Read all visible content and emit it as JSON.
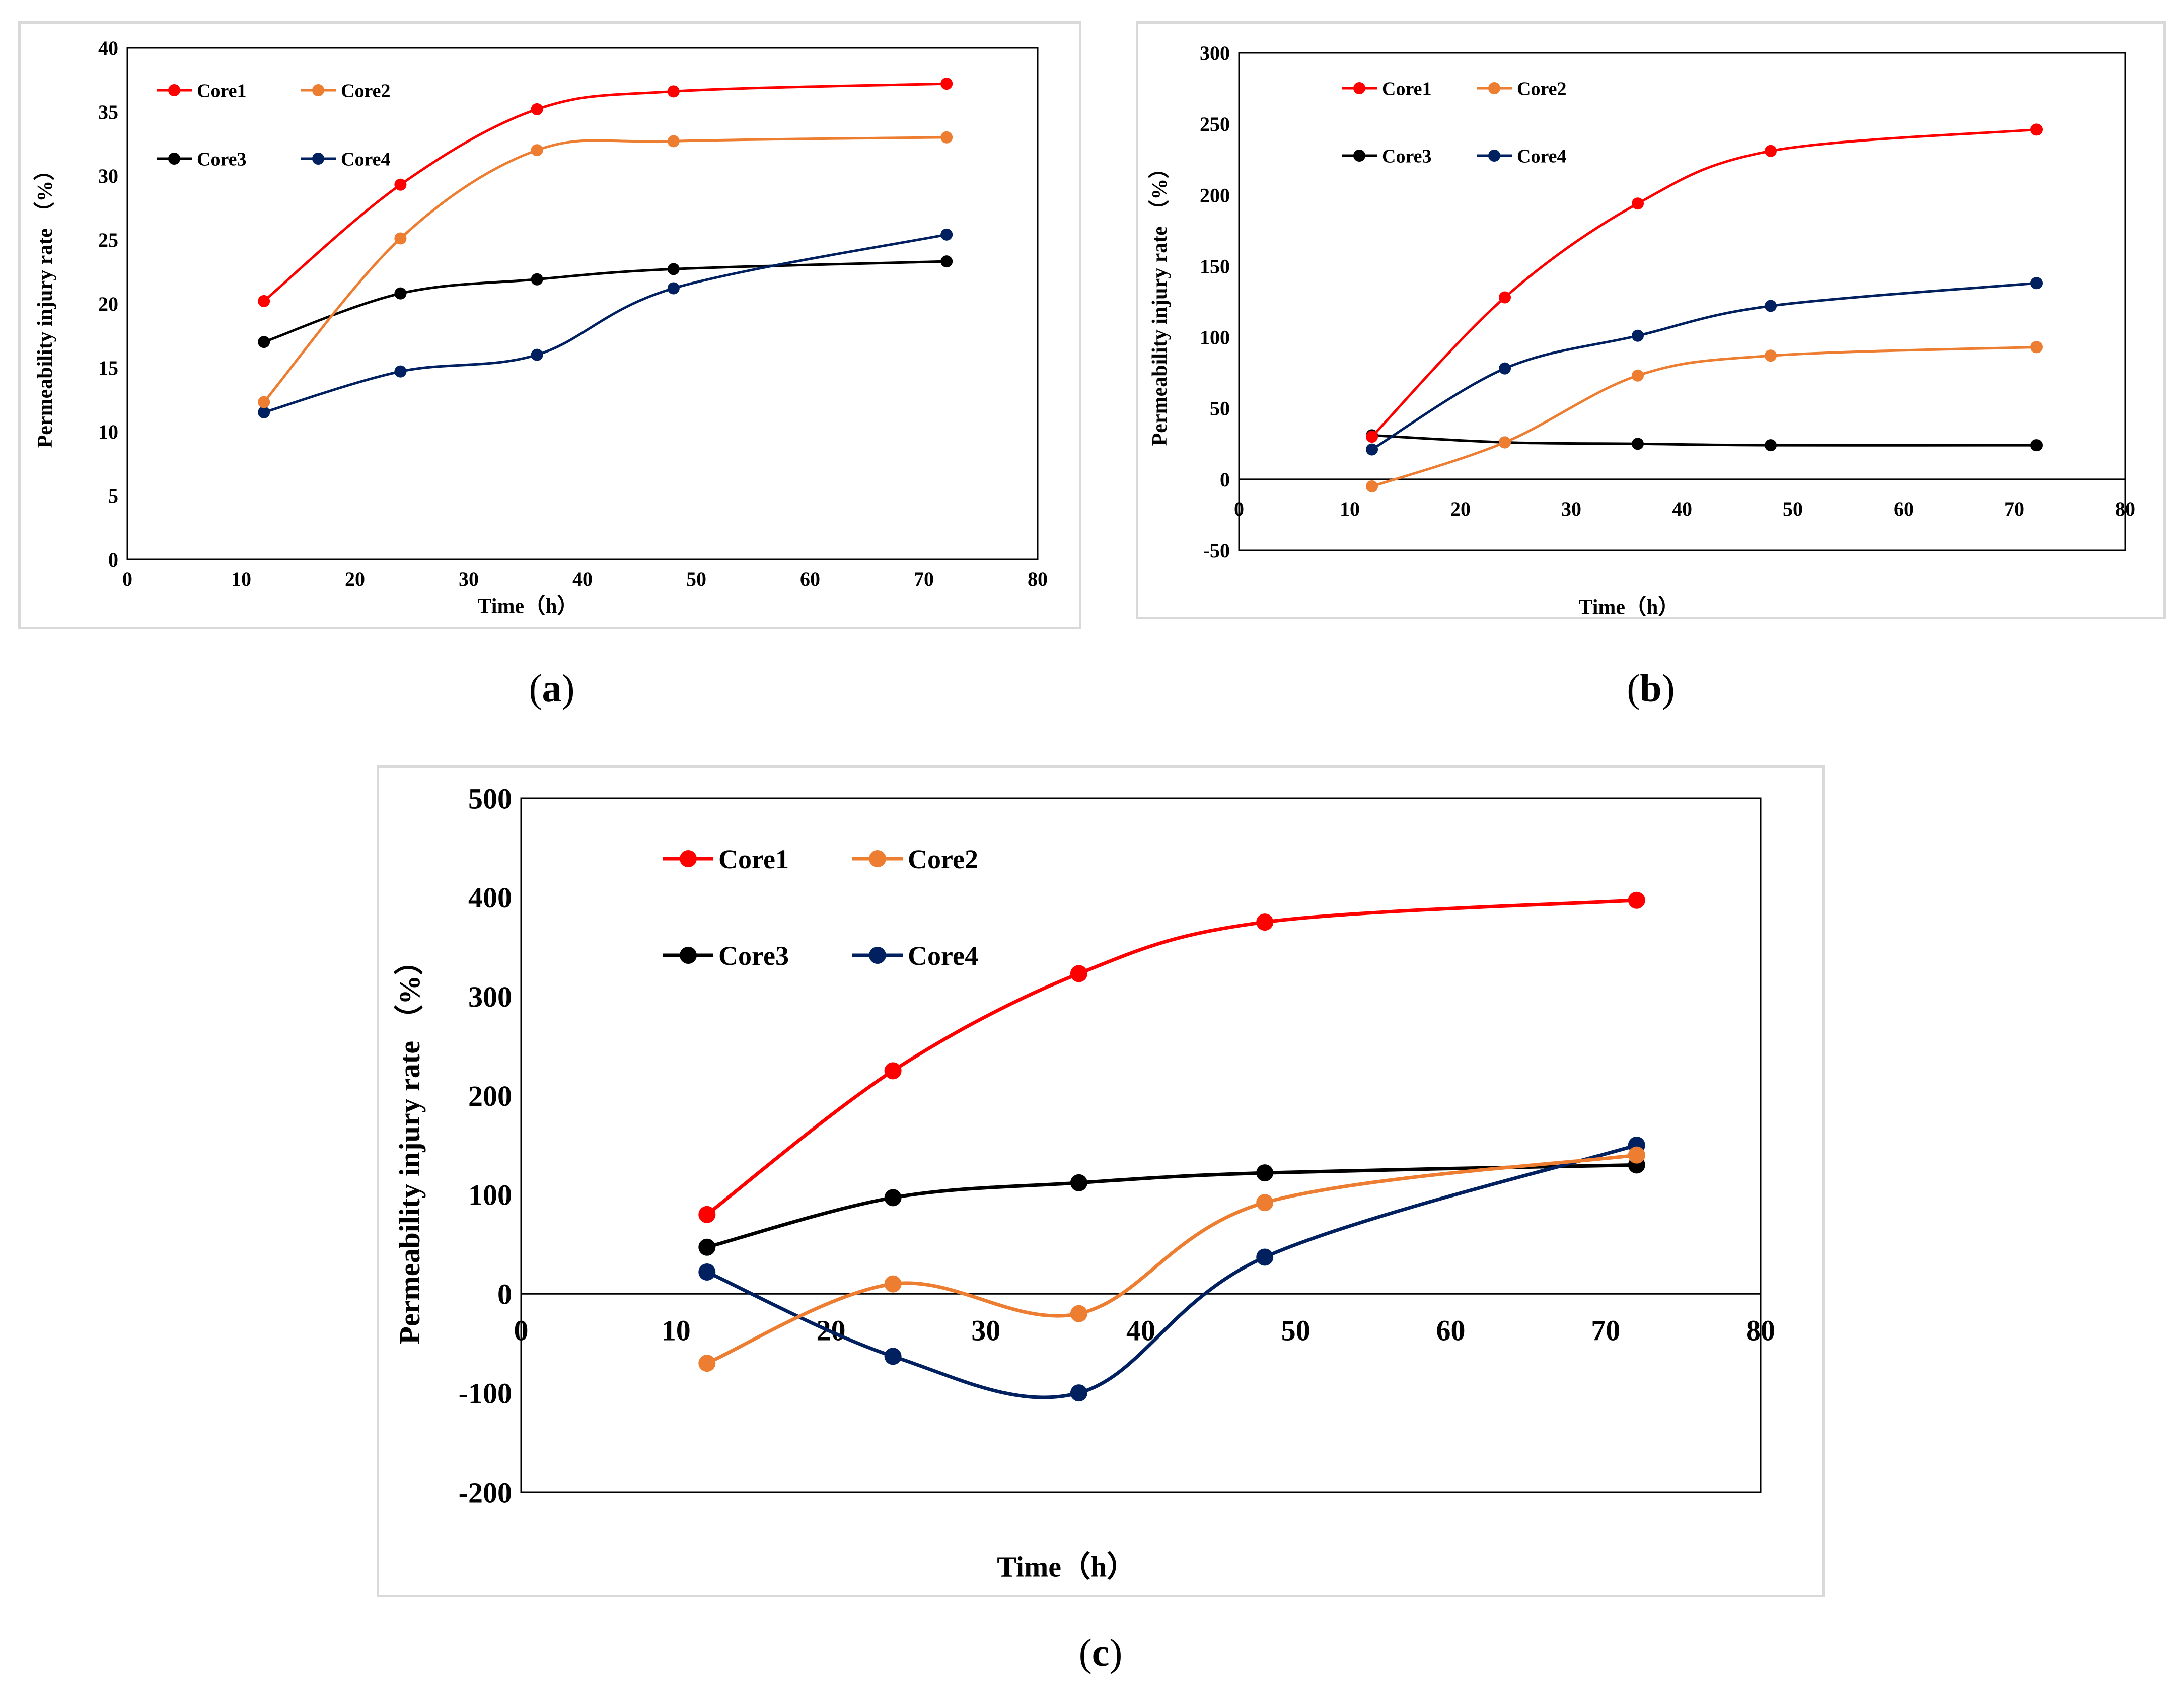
{
  "colors": {
    "Core1": "#ff0000",
    "Core2": "#ed7d31",
    "Core3": "#000000",
    "Core4": "#002060",
    "frame": "#000000",
    "panel_border": "#d9d9d9"
  },
  "chart_data": [
    {
      "id": "a",
      "caption": "a",
      "type": "line",
      "xlabel": "Time（h）",
      "ylabel": "Permeability injury rate （%）",
      "xlim": [
        0,
        80
      ],
      "ylim": [
        0,
        40
      ],
      "x_ticks": [
        0,
        10,
        20,
        30,
        40,
        50,
        60,
        70,
        80
      ],
      "y_ticks": [
        0,
        5,
        10,
        15,
        20,
        25,
        30,
        35,
        40
      ],
      "x_tick_labels": [
        "0",
        "10",
        "20",
        "30",
        "40",
        "50",
        "60",
        "70",
        "80"
      ],
      "y_tick_labels": [
        "0",
        "5",
        "10",
        "15",
        "20",
        "25",
        "30",
        "35",
        "40"
      ],
      "legend": "top-left",
      "grid": false,
      "x": [
        12,
        24,
        36,
        48,
        72
      ],
      "series": [
        {
          "name": "Core1",
          "values": [
            20.2,
            29.3,
            35.2,
            36.6,
            37.2
          ]
        },
        {
          "name": "Core2",
          "values": [
            12.3,
            25.1,
            32.0,
            32.7,
            33.0
          ]
        },
        {
          "name": "Core3",
          "values": [
            17.0,
            20.8,
            21.9,
            22.7,
            23.3
          ]
        },
        {
          "name": "Core4",
          "values": [
            11.5,
            14.7,
            16.0,
            21.2,
            25.4
          ]
        }
      ]
    },
    {
      "id": "b",
      "caption": "b",
      "type": "line",
      "xlabel": "Time（h）",
      "ylabel": "Permeability injury rate （%）",
      "xlim": [
        0,
        80
      ],
      "ylim": [
        -50,
        300
      ],
      "x_ticks": [
        0,
        10,
        20,
        30,
        40,
        50,
        60,
        70,
        80
      ],
      "y_ticks": [
        -50,
        0,
        50,
        100,
        150,
        200,
        250,
        300
      ],
      "x_tick_labels": [
        "0",
        "10",
        "20",
        "30",
        "40",
        "50",
        "60",
        "70",
        "80"
      ],
      "y_tick_labels": [
        "-50",
        "0",
        "50",
        "100",
        "150",
        "200",
        "250",
        "300"
      ],
      "legend": "top-left",
      "grid": false,
      "x": [
        12,
        24,
        36,
        48,
        72
      ],
      "series": [
        {
          "name": "Core1",
          "values": [
            30,
            128,
            194,
            231,
            246
          ]
        },
        {
          "name": "Core2",
          "values": [
            -5,
            26,
            73,
            87,
            93
          ]
        },
        {
          "name": "Core3",
          "values": [
            31,
            26,
            25,
            24,
            24
          ]
        },
        {
          "name": "Core4",
          "values": [
            21,
            78,
            101,
            122,
            138
          ]
        }
      ]
    },
    {
      "id": "c",
      "caption": "c",
      "type": "line",
      "xlabel": "Time（h）",
      "ylabel": "Permeability injury rate （%）",
      "xlim": [
        0,
        80
      ],
      "ylim": [
        -200,
        500
      ],
      "x_ticks": [
        0,
        10,
        20,
        30,
        40,
        50,
        60,
        70,
        80
      ],
      "y_ticks": [
        -200,
        -100,
        0,
        100,
        200,
        300,
        400,
        500
      ],
      "x_tick_labels": [
        "0",
        "10",
        "20",
        "30",
        "40",
        "50",
        "60",
        "70",
        "80"
      ],
      "y_tick_labels": [
        "-200",
        "-100",
        "0",
        "100",
        "200",
        "300",
        "400",
        "500"
      ],
      "legend": "top-left",
      "grid": false,
      "x": [
        12,
        24,
        36,
        48,
        72
      ],
      "series": [
        {
          "name": "Core1",
          "values": [
            80,
            225,
            323,
            375,
            397
          ]
        },
        {
          "name": "Core2",
          "values": [
            -70,
            10,
            -20,
            92,
            140
          ]
        },
        {
          "name": "Core3",
          "values": [
            47,
            97,
            112,
            122,
            130
          ]
        },
        {
          "name": "Core4",
          "values": [
            22,
            -63,
            -100,
            37,
            150
          ]
        }
      ]
    }
  ]
}
